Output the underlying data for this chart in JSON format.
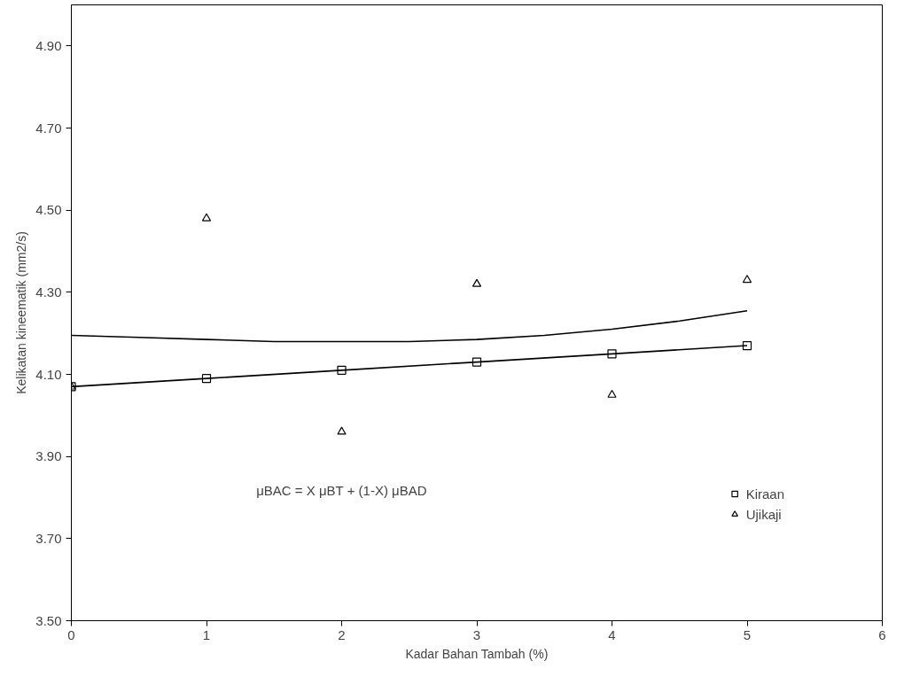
{
  "chart_data": {
    "type": "scatter",
    "xlabel": "Kadar Bahan Tambah (%)",
    "ylabel": "Kelikatan kineematik (mm2/s)",
    "x": [
      0,
      1,
      2,
      3,
      4,
      5
    ],
    "series": [
      {
        "name": "Kiraan",
        "color": "#000000",
        "marker": "square",
        "values": [
          4.07,
          4.09,
          4.11,
          4.13,
          4.15,
          4.17
        ]
      },
      {
        "name": "Ujikaji",
        "color": "#000000",
        "marker": "triangle",
        "values": [
          4.07,
          4.48,
          3.96,
          4.32,
          4.05,
          4.33
        ]
      },
      {
        "type": "line",
        "color": "#000000",
        "x": [
          0,
          1,
          2,
          3,
          4,
          5
        ],
        "values": [
          4.07,
          4.09,
          4.11,
          4.13,
          4.15,
          4.17
        ]
      },
      {
        "type": "line",
        "color": "#000000",
        "x": [
          0,
          0.5,
          1,
          1.5,
          2,
          2.5,
          3,
          3.5,
          4,
          4.5,
          5
        ],
        "values": [
          4.195,
          4.19,
          4.185,
          4.18,
          4.18,
          4.18,
          4.185,
          4.195,
          4.21,
          4.23,
          4.255
        ]
      }
    ],
    "xlim": [
      0,
      6
    ],
    "xticks": [
      0,
      1,
      2,
      3,
      4,
      5,
      6
    ],
    "ylim": [
      3.5,
      5.0
    ],
    "yticks": [
      {
        "value": 3.5,
        "label": "3.50"
      },
      {
        "value": 3.7,
        "label": "3.70"
      },
      {
        "value": 3.9,
        "label": "3.90"
      },
      {
        "value": 4.1,
        "label": "4.10"
      },
      {
        "value": 4.3,
        "label": "4.30"
      },
      {
        "value": 4.5,
        "label": "4.50"
      },
      {
        "value": 4.7,
        "label": "4.70"
      },
      {
        "value": 4.9,
        "label": "4.90"
      }
    ],
    "annotations": [
      "μBAC = X μBT + (1-X) μBAD"
    ],
    "grid": false,
    "legend": "bottom right"
  }
}
